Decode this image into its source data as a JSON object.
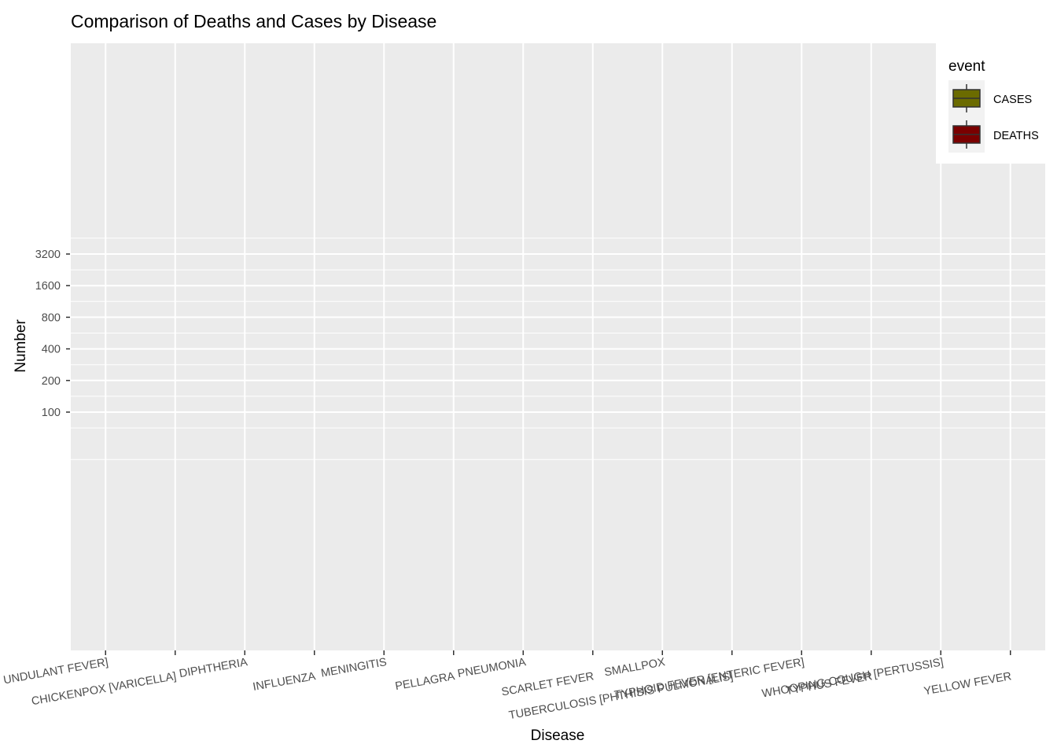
{
  "chart_data": {
    "type": "box",
    "title": "Comparison of Deaths and Cases by Disease",
    "xlabel": "Disease",
    "ylabel": "Number",
    "y_scale": "log2",
    "y_ticks": [
      100,
      200,
      400,
      800,
      1600,
      3200
    ],
    "categories": [
      "UNDULANT FEVER]",
      "CHICKENPOX [VARICELLA]",
      "DIPHTHERIA",
      "INFLUENZA",
      "MENINGITIS",
      "PELLAGRA",
      "PNEUMONIA",
      "SCARLET FEVER",
      "SMALLPOX",
      "TUBERCULOSIS [PHTHISIS PULMONALIS]",
      "TYPHOID FEVER [ENTERIC FEVER]",
      "TYPHUS FEVER",
      "WHOOPING COUGH [PERTUSSIS]",
      "YELLOW FEVER"
    ],
    "series": [
      {
        "name": "CASES",
        "values": [],
        "color": "#6b6b00"
      },
      {
        "name": "DEATHS",
        "values": [],
        "color": "#7a0000"
      }
    ],
    "legend": {
      "title": "event",
      "position": "top-right"
    },
    "grid": true,
    "panel_background": "#ebebeb",
    "grid_color": "#ffffff"
  }
}
